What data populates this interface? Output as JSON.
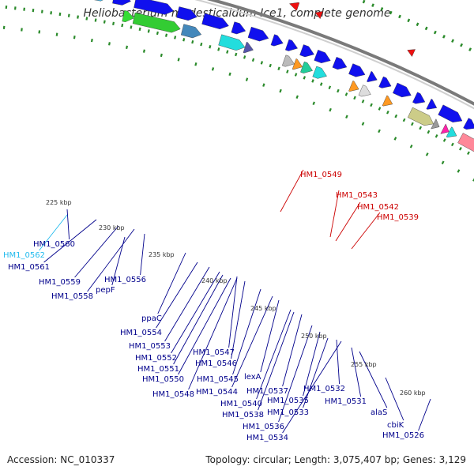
{
  "title": "Heliobacterium modesticaldum Ice1, complete genome",
  "footer": {
    "accession": "Accession: NC_010337",
    "topology": "Topology: circular; Length: 3,075,407 bp; Genes: 3,129"
  },
  "colors": {
    "forward_gene": "#1010ee",
    "reverse_gene": "#ee1010",
    "backbone": "#888888",
    "tick": "#2a8a2a",
    "label_blue": "#00008b",
    "label_red": "#cc0000",
    "label_cyan": "#22bbee"
  },
  "scale_labels": [
    "225 kbp",
    "230 kbp",
    "235 kbp",
    "240 kbp",
    "245 kbp",
    "250 kbp",
    "255 kbp",
    "260 kbp"
  ],
  "gene_labels": [
    {
      "text": "HM1_0549",
      "color": "red"
    },
    {
      "text": "HM1_0543",
      "color": "red"
    },
    {
      "text": "HM1_0542",
      "color": "red"
    },
    {
      "text": "HM1_0539",
      "color": "red"
    },
    {
      "text": "HM1_0560",
      "color": "blue"
    },
    {
      "text": "HM1_0562",
      "color": "cyan"
    },
    {
      "text": "HM1_0561",
      "color": "blue"
    },
    {
      "text": "HM1_0559",
      "color": "blue"
    },
    {
      "text": "HM1_0556",
      "color": "blue"
    },
    {
      "text": "pepF",
      "color": "blue"
    },
    {
      "text": "HM1_0558",
      "color": "blue"
    },
    {
      "text": "ppaC",
      "color": "blue"
    },
    {
      "text": "HM1_0554",
      "color": "blue"
    },
    {
      "text": "HM1_0553",
      "color": "blue"
    },
    {
      "text": "HM1_0547",
      "color": "blue"
    },
    {
      "text": "HM1_0552",
      "color": "blue"
    },
    {
      "text": "HM1_0546",
      "color": "blue"
    },
    {
      "text": "HM1_0551",
      "color": "blue"
    },
    {
      "text": "HM1_0545",
      "color": "blue"
    },
    {
      "text": "HM1_0550",
      "color": "blue"
    },
    {
      "text": "lexA",
      "color": "blue"
    },
    {
      "text": "HM1_0548",
      "color": "blue"
    },
    {
      "text": "HM1_0544",
      "color": "blue"
    },
    {
      "text": "HM1_0537",
      "color": "blue"
    },
    {
      "text": "HM1_0532",
      "color": "blue"
    },
    {
      "text": "HM1_0540",
      "color": "blue"
    },
    {
      "text": "HM1_0535",
      "color": "blue"
    },
    {
      "text": "HM1_0531",
      "color": "blue"
    },
    {
      "text": "HM1_0538",
      "color": "blue"
    },
    {
      "text": "HM1_0533",
      "color": "blue"
    },
    {
      "text": "alaS",
      "color": "blue"
    },
    {
      "text": "HM1_0536",
      "color": "blue"
    },
    {
      "text": "cbiK",
      "color": "blue"
    },
    {
      "text": "HM1_0534",
      "color": "blue"
    },
    {
      "text": "HM1_0526",
      "color": "blue"
    }
  ]
}
